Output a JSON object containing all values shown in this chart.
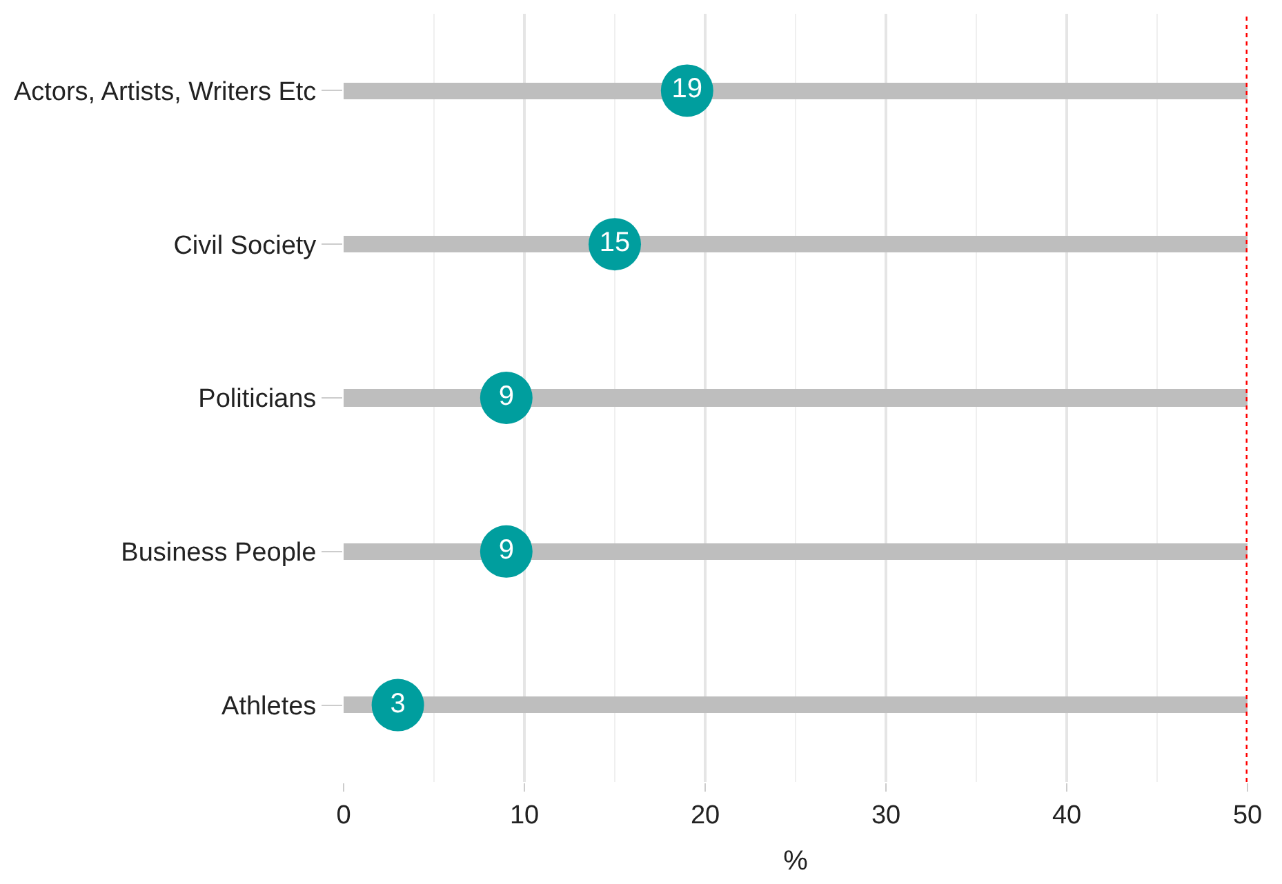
{
  "chart_data": {
    "type": "bar",
    "orientation": "horizontal",
    "xlabel": "%",
    "categories": [
      "Actors, Artists, Writers Etc",
      "Civil Society",
      "Politicians",
      "Business People",
      "Athletes"
    ],
    "series": [
      {
        "color": "#bebebe",
        "values": [
          50,
          50,
          50,
          50,
          50
        ]
      },
      {
        "type": "scatter",
        "color": "#009e9e",
        "values": [
          19,
          15,
          9,
          9,
          3
        ],
        "value_labels": [
          "19",
          "15",
          "9",
          "9",
          "3"
        ]
      }
    ],
    "marker": "circle",
    "xlim": [
      0,
      50
    ],
    "xticks": [
      0,
      10,
      20,
      30,
      40,
      50
    ],
    "grid": "x",
    "ref_lines": [
      {
        "axis": "x",
        "value": 50,
        "color": "#ff0000",
        "line_style": "dotted"
      }
    ]
  }
}
